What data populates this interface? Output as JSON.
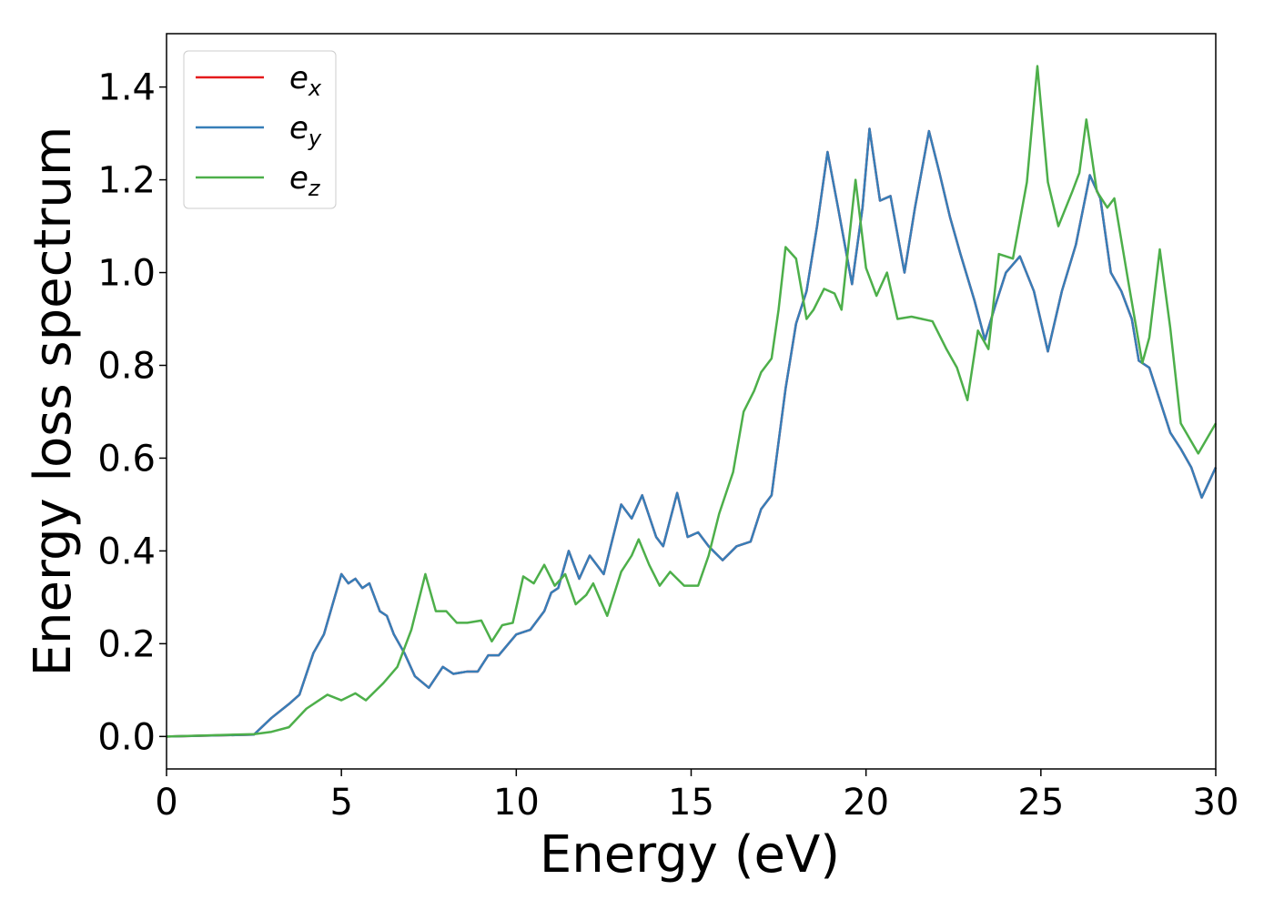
{
  "chart_data": {
    "type": "line",
    "xlabel": "Energy (eV)",
    "ylabel": "Energy loss spectrum",
    "xlim": [
      0,
      30
    ],
    "ylim": [
      -0.07,
      1.515
    ],
    "xticks": [
      0,
      5,
      10,
      15,
      20,
      25,
      30
    ],
    "yticks": [
      {
        "value": 0,
        "label": "0.0"
      },
      0.2,
      0.4,
      0.6,
      0.8,
      1.0,
      1.2,
      1.4
    ],
    "legend": "upper left",
    "series": [
      {
        "name": "ex",
        "color": "#e41a1c",
        "x": [
          0,
          2.5,
          3,
          3.5,
          3.8,
          4.2,
          4.5,
          5,
          5.2,
          5.4,
          5.6,
          5.8,
          6.1,
          6.3,
          6.5,
          6.8,
          7.1,
          7.5,
          7.9,
          8.2,
          8.6,
          8.9,
          9.2,
          9.5,
          10,
          10.4,
          10.8,
          11,
          11.2,
          11.5,
          11.8,
          12.1,
          12.5,
          13,
          13.3,
          13.6,
          14,
          14.2,
          14.6,
          14.9,
          15.2,
          15.5,
          15.9,
          16.3,
          16.7,
          17,
          17.3,
          17.7,
          18,
          18.3,
          18.6,
          18.9,
          19.2,
          19.6,
          19.9,
          20.1,
          20.4,
          20.7,
          21.1,
          21.4,
          21.8,
          22.1,
          22.4,
          22.7,
          23.1,
          23.4,
          23.7,
          24,
          24.4,
          24.8,
          25.2,
          25.6,
          26,
          26.4,
          26.7,
          27,
          27.3,
          27.6,
          27.8,
          28.1,
          28.4,
          28.7,
          29,
          29.3,
          29.6,
          30
        ],
        "values": [
          0,
          0.004,
          0.04,
          0.07,
          0.09,
          0.18,
          0.22,
          0.35,
          0.33,
          0.34,
          0.32,
          0.33,
          0.27,
          0.26,
          0.22,
          0.18,
          0.13,
          0.105,
          0.15,
          0.135,
          0.14,
          0.14,
          0.175,
          0.175,
          0.22,
          0.23,
          0.27,
          0.31,
          0.32,
          0.4,
          0.34,
          0.39,
          0.35,
          0.5,
          0.47,
          0.52,
          0.43,
          0.41,
          0.525,
          0.43,
          0.44,
          0.41,
          0.38,
          0.41,
          0.42,
          0.49,
          0.52,
          0.75,
          0.89,
          0.96,
          1.1,
          1.26,
          1.14,
          0.975,
          1.14,
          1.31,
          1.155,
          1.165,
          1.0,
          1.14,
          1.305,
          1.215,
          1.12,
          1.04,
          0.94,
          0.855,
          0.93,
          1.0,
          1.035,
          0.96,
          0.83,
          0.96,
          1.06,
          1.21,
          1.16,
          1.0,
          0.96,
          0.9,
          0.81,
          0.795,
          0.725,
          0.655,
          0.62,
          0.58,
          0.515,
          0.58
        ]
      },
      {
        "name": "ey",
        "color": "#377eb8",
        "x": [
          0,
          2.5,
          3,
          3.5,
          3.8,
          4.2,
          4.5,
          5,
          5.2,
          5.4,
          5.6,
          5.8,
          6.1,
          6.3,
          6.5,
          6.8,
          7.1,
          7.5,
          7.9,
          8.2,
          8.6,
          8.9,
          9.2,
          9.5,
          10,
          10.4,
          10.8,
          11,
          11.2,
          11.5,
          11.8,
          12.1,
          12.5,
          13,
          13.3,
          13.6,
          14,
          14.2,
          14.6,
          14.9,
          15.2,
          15.5,
          15.9,
          16.3,
          16.7,
          17,
          17.3,
          17.7,
          18,
          18.3,
          18.6,
          18.9,
          19.2,
          19.6,
          19.9,
          20.1,
          20.4,
          20.7,
          21.1,
          21.4,
          21.8,
          22.1,
          22.4,
          22.7,
          23.1,
          23.4,
          23.7,
          24,
          24.4,
          24.8,
          25.2,
          25.6,
          26,
          26.4,
          26.7,
          27,
          27.3,
          27.6,
          27.8,
          28.1,
          28.4,
          28.7,
          29,
          29.3,
          29.6,
          30
        ],
        "values": [
          0,
          0.004,
          0.04,
          0.07,
          0.09,
          0.18,
          0.22,
          0.35,
          0.33,
          0.34,
          0.32,
          0.33,
          0.27,
          0.26,
          0.22,
          0.18,
          0.13,
          0.105,
          0.15,
          0.135,
          0.14,
          0.14,
          0.175,
          0.175,
          0.22,
          0.23,
          0.27,
          0.31,
          0.32,
          0.4,
          0.34,
          0.39,
          0.35,
          0.5,
          0.47,
          0.52,
          0.43,
          0.41,
          0.525,
          0.43,
          0.44,
          0.41,
          0.38,
          0.41,
          0.42,
          0.49,
          0.52,
          0.75,
          0.89,
          0.96,
          1.1,
          1.26,
          1.14,
          0.975,
          1.14,
          1.31,
          1.155,
          1.165,
          1.0,
          1.14,
          1.305,
          1.215,
          1.12,
          1.04,
          0.94,
          0.855,
          0.93,
          1.0,
          1.035,
          0.96,
          0.83,
          0.96,
          1.06,
          1.21,
          1.16,
          1.0,
          0.96,
          0.9,
          0.81,
          0.795,
          0.725,
          0.655,
          0.62,
          0.58,
          0.515,
          0.58
        ]
      },
      {
        "name": "ez",
        "color": "#4daf4a",
        "x": [
          0,
          2.5,
          3,
          3.5,
          4,
          4.3,
          4.6,
          5,
          5.4,
          5.7,
          6.2,
          6.6,
          7,
          7.4,
          7.7,
          8,
          8.3,
          8.6,
          9,
          9.3,
          9.6,
          9.9,
          10.2,
          10.5,
          10.8,
          11.1,
          11.4,
          11.7,
          12,
          12.2,
          12.6,
          13,
          13.3,
          13.5,
          13.8,
          14.1,
          14.4,
          14.8,
          15.2,
          15.5,
          15.8,
          16.2,
          16.5,
          16.8,
          17,
          17.3,
          17.5,
          17.7,
          18,
          18.3,
          18.5,
          18.8,
          19.1,
          19.3,
          19.7,
          20,
          20.3,
          20.6,
          20.9,
          21.3,
          21.6,
          21.9,
          22.3,
          22.6,
          22.9,
          23.2,
          23.5,
          23.8,
          24.2,
          24.6,
          24.9,
          25.2,
          25.5,
          25.9,
          26.1,
          26.3,
          26.6,
          26.9,
          27.1,
          27.5,
          27.9,
          28.1,
          28.4,
          28.7,
          29,
          29.5,
          30
        ],
        "values": [
          0,
          0.005,
          0.01,
          0.02,
          0.06,
          0.075,
          0.09,
          0.078,
          0.093,
          0.078,
          0.115,
          0.15,
          0.23,
          0.35,
          0.27,
          0.27,
          0.245,
          0.245,
          0.25,
          0.205,
          0.24,
          0.245,
          0.345,
          0.33,
          0.37,
          0.325,
          0.35,
          0.285,
          0.305,
          0.33,
          0.26,
          0.355,
          0.39,
          0.425,
          0.37,
          0.325,
          0.355,
          0.325,
          0.325,
          0.39,
          0.48,
          0.57,
          0.7,
          0.745,
          0.785,
          0.815,
          0.92,
          1.055,
          1.03,
          0.9,
          0.92,
          0.965,
          0.955,
          0.92,
          1.2,
          1.01,
          0.95,
          1.0,
          0.9,
          0.905,
          0.9,
          0.895,
          0.835,
          0.795,
          0.725,
          0.875,
          0.835,
          1.04,
          1.03,
          1.195,
          1.445,
          1.195,
          1.1,
          1.175,
          1.215,
          1.33,
          1.175,
          1.14,
          1.16,
          0.98,
          0.805,
          0.86,
          1.05,
          0.88,
          0.675,
          0.61,
          0.675
        ]
      }
    ]
  }
}
